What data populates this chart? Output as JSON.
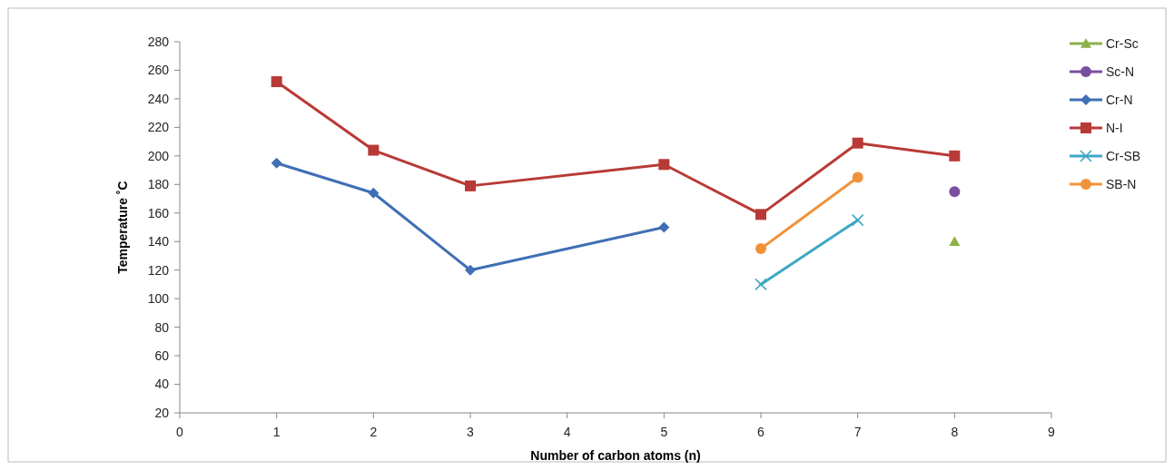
{
  "chart_data": {
    "type": "line",
    "xlabel": "Number of carbon atoms (n)",
    "ylabel": "Temperature ˚C",
    "xlim": [
      0,
      9
    ],
    "xticks": [
      0,
      1,
      2,
      3,
      4,
      5,
      6,
      7,
      8,
      9
    ],
    "ylim": [
      20,
      280
    ],
    "yticks": [
      20,
      40,
      60,
      80,
      100,
      120,
      140,
      160,
      180,
      200,
      220,
      240,
      260,
      280
    ],
    "grid": false,
    "legend": "right",
    "series": [
      {
        "name": "Cr-Sc",
        "color": "#8db04a",
        "marker": "triangle",
        "x": [
          8
        ],
        "values": [
          140
        ]
      },
      {
        "name": "Sc-N",
        "color": "#7a4fa0",
        "marker": "circle",
        "x": [
          8
        ],
        "values": [
          175
        ]
      },
      {
        "name": "Cr-N",
        "color": "#3f6fb5",
        "marker": "diamond",
        "x": [
          1,
          2,
          3,
          5
        ],
        "values": [
          195,
          174,
          120,
          150
        ]
      },
      {
        "name": "N-I",
        "color": "#b83a36",
        "marker": "square",
        "x": [
          1,
          2,
          3,
          5,
          6,
          7,
          8
        ],
        "values": [
          252,
          204,
          179,
          194,
          159,
          209,
          200
        ]
      },
      {
        "name": "Cr-SB",
        "color": "#3fa7c4",
        "marker": "cross",
        "x": [
          6,
          7
        ],
        "values": [
          110,
          155
        ]
      },
      {
        "name": "SB-N",
        "color": "#f0923a",
        "marker": "circle",
        "x": [
          6,
          7
        ],
        "values": [
          135,
          185
        ]
      }
    ]
  }
}
